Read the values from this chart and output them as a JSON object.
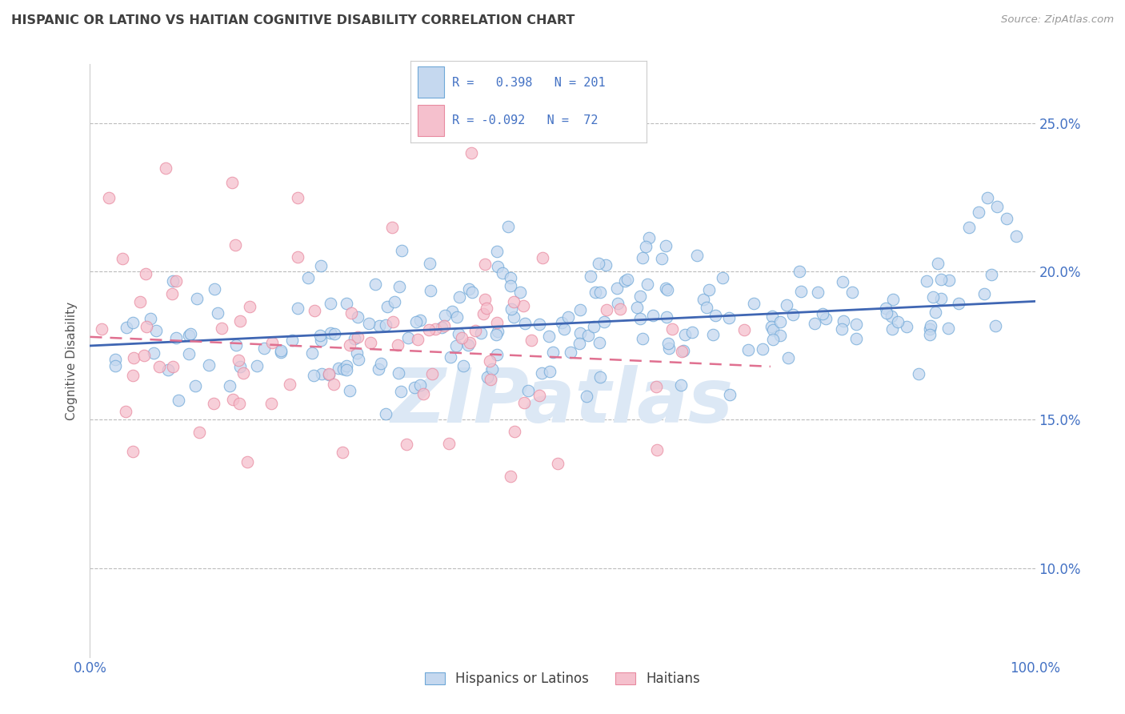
{
  "title": "HISPANIC OR LATINO VS HAITIAN COGNITIVE DISABILITY CORRELATION CHART",
  "source": "Source: ZipAtlas.com",
  "ylabel": "Cognitive Disability",
  "ytick_values": [
    0.1,
    0.15,
    0.2,
    0.25
  ],
  "ytick_labels": [
    "10.0%",
    "15.0%",
    "20.0%",
    "25.0%"
  ],
  "xlim": [
    0.0,
    1.0
  ],
  "ylim": [
    0.07,
    0.27
  ],
  "blue_R": 0.398,
  "blue_N": 201,
  "pink_R": -0.092,
  "pink_N": 72,
  "blue_fill_color": "#c5d8ef",
  "blue_edge_color": "#6fa8d8",
  "pink_fill_color": "#f5c0cd",
  "pink_edge_color": "#e88aa0",
  "blue_line_color": "#3f66b3",
  "pink_line_color": "#e07090",
  "title_color": "#404040",
  "axis_label_color": "#4472c4",
  "legend_R_color": "#4472c4",
  "watermark_color": "#dce8f5",
  "background_color": "#ffffff",
  "grid_color": "#bbbbbb",
  "blue_trend_x0": 0.0,
  "blue_trend_y0": 0.175,
  "blue_trend_x1": 1.0,
  "blue_trend_y1": 0.19,
  "pink_trend_x0": 0.0,
  "pink_trend_y0": 0.178,
  "pink_trend_x1": 0.72,
  "pink_trend_y1": 0.168
}
